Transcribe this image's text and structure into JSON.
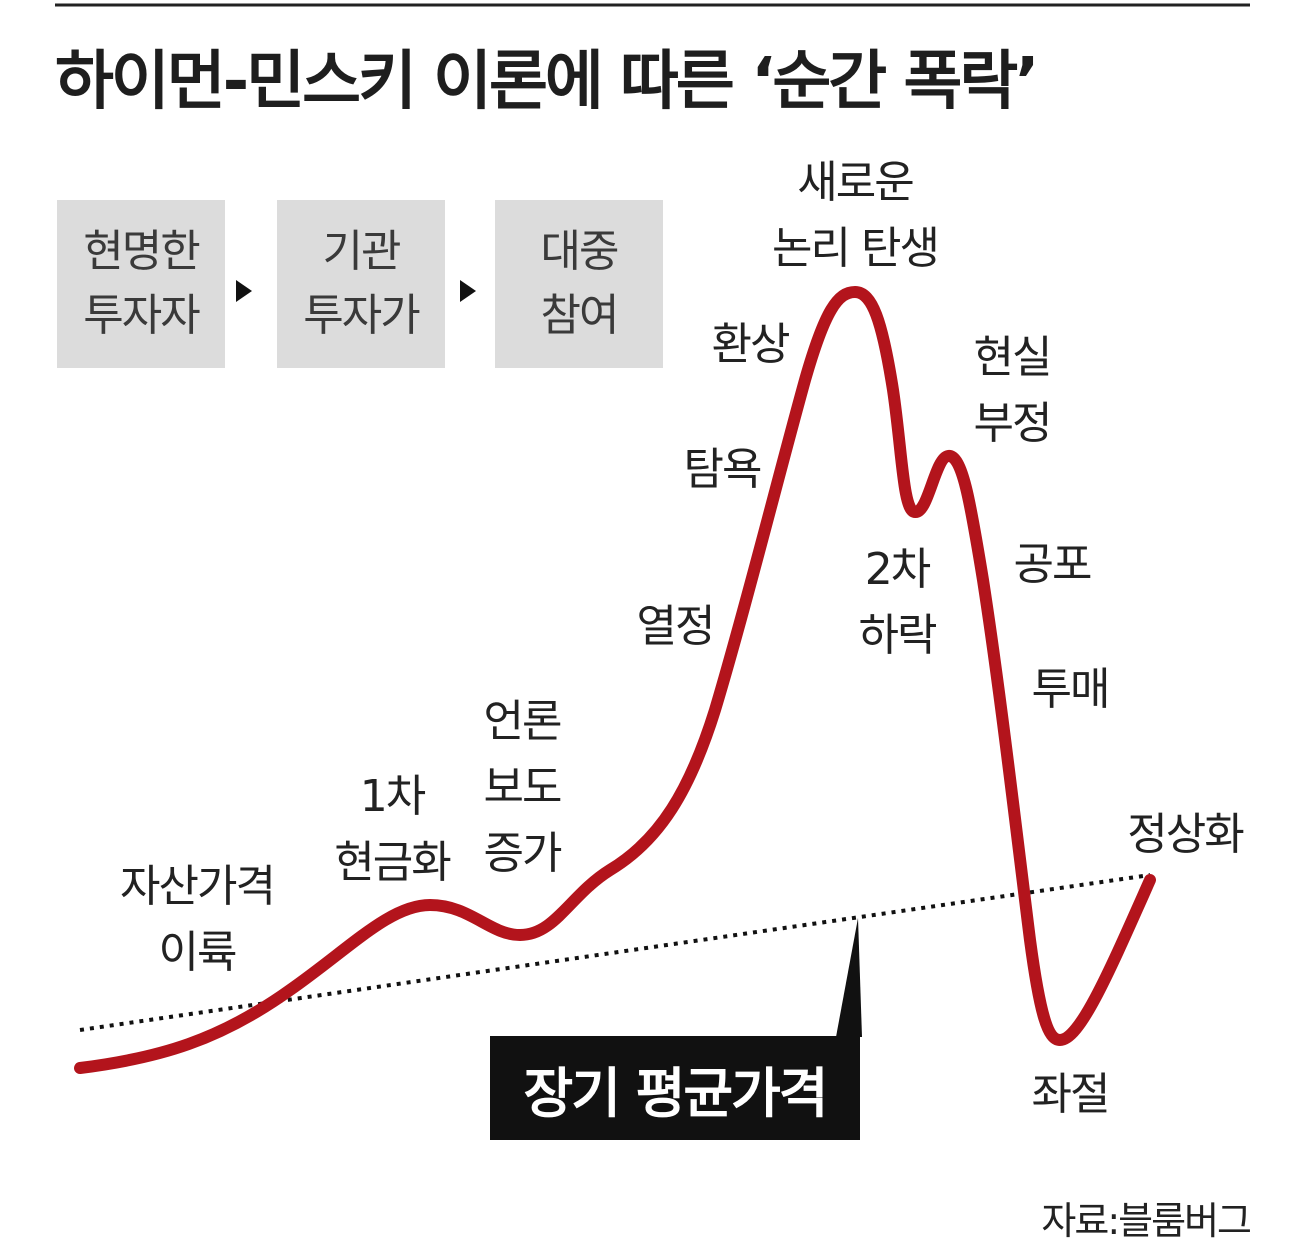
{
  "title": "하이먼-민스키 이론에 따른 ‘순간 폭락’",
  "stages": [
    {
      "lines": [
        "현명한",
        "투자자"
      ]
    },
    {
      "lines": [
        "기관",
        "투자가"
      ]
    },
    {
      "lines": [
        "대중",
        "참여"
      ]
    }
  ],
  "icons": {
    "stage_arrow": "arrow-right-icon"
  },
  "curve_labels": {
    "takeoff": [
      "자산가격",
      "이륙"
    ],
    "first_cashout": [
      "1차",
      "현금화"
    ],
    "media": [
      "언론",
      "보도",
      "증가"
    ],
    "enthusiasm": [
      "열정"
    ],
    "greed": [
      "탐욕"
    ],
    "delusion": [
      "환상"
    ],
    "new_paradigm": [
      "새로운",
      "논리 탄생"
    ],
    "second_decline": [
      "2차",
      "하락"
    ],
    "denial": [
      "현실",
      "부정"
    ],
    "fear": [
      "공포"
    ],
    "capitulation": [
      "투매"
    ],
    "despair": [
      "좌절"
    ],
    "normalization": [
      "정상화"
    ]
  },
  "mean_label": "장기 평균가격",
  "source": "자료:블룸버그",
  "colors": {
    "curve": "#b3141c",
    "stage_box": "#dcdcdc",
    "mean_box": "#111111",
    "text": "#222222"
  }
}
